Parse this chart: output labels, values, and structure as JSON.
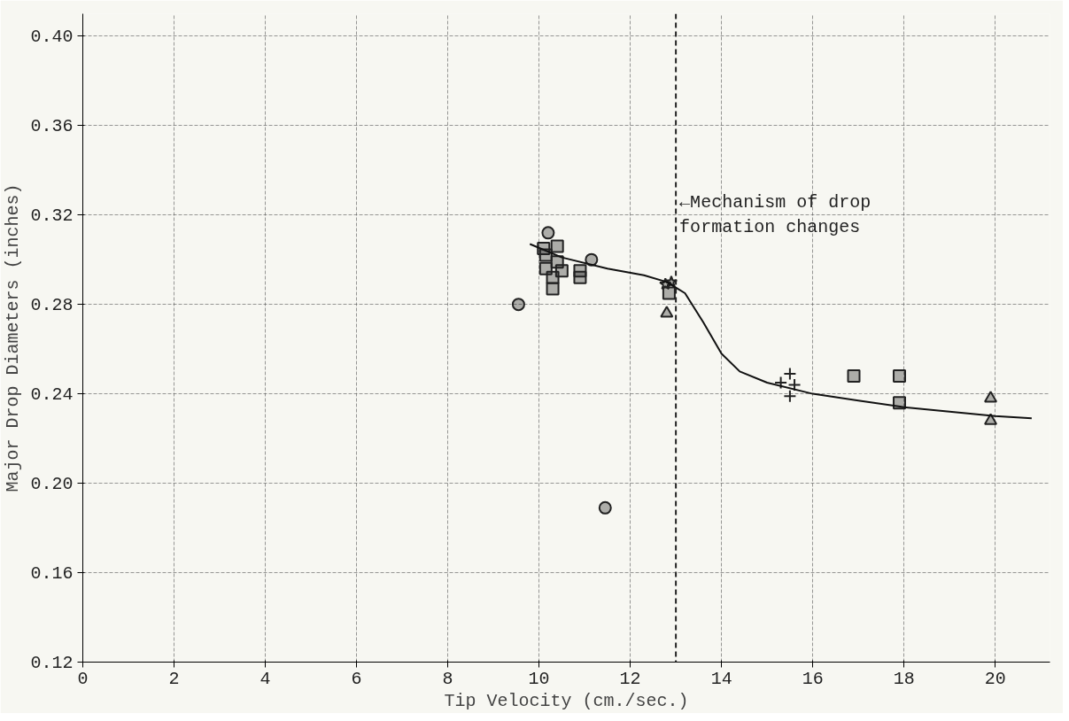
{
  "chart_data": {
    "type": "scatter",
    "xlabel": "Tip Velocity (cm./sec.)",
    "ylabel": "Major Drop Diameters (inches)",
    "xlim": [
      0,
      21.2
    ],
    "ylim": [
      0.12,
      0.41
    ],
    "xticks": [
      0,
      2,
      4,
      6,
      8,
      10,
      12,
      14,
      16,
      18,
      20
    ],
    "yticks": [
      0.12,
      0.16,
      {
        "value": 0.2,
        "label": "0.20"
      },
      0.24,
      0.28,
      0.32,
      0.36,
      {
        "value": 0.4,
        "label": "0.40"
      }
    ],
    "grid": true,
    "series": [
      {
        "color": "#222222",
        "marker": "circle",
        "x": [
          10.2,
          9.55,
          11.15
        ],
        "values": [
          0.312,
          0.28,
          0.3
        ]
      },
      {
        "color": "#222222",
        "marker": "square",
        "x": [
          10.1,
          10.4,
          10.15,
          10.4,
          10.15,
          10.5,
          10.3,
          10.3,
          10.9,
          10.9,
          12.85
        ],
        "values": [
          0.305,
          0.306,
          0.302,
          0.299,
          0.296,
          0.295,
          0.292,
          0.287,
          0.295,
          0.292,
          0.285
        ]
      },
      {
        "color": "#222222",
        "marker": "star",
        "x": [
          12.77,
          12.9
        ],
        "values": [
          0.289,
          0.29
        ]
      },
      {
        "color": "#222222",
        "marker": "triangle",
        "x": [
          12.8
        ],
        "values": [
          0.276
        ]
      },
      {
        "color": "#222222",
        "marker": "cross",
        "x": [
          15.5,
          15.3,
          15.6,
          15.5
        ],
        "values": [
          0.249,
          0.245,
          0.244,
          0.239
        ]
      },
      {
        "color": "#222222",
        "marker": "square",
        "x": [
          16.9,
          17.9,
          17.9
        ],
        "values": [
          0.248,
          0.248,
          0.236
        ]
      },
      {
        "color": "#222222",
        "marker": "triangle",
        "x": [
          19.9,
          19.9
        ],
        "values": [
          0.238,
          0.228
        ]
      },
      {
        "color": "#222222",
        "marker": "circle",
        "x": [
          11.45
        ],
        "values": [
          0.189
        ]
      },
      {
        "type": "line",
        "color": "#111111",
        "marker": "none",
        "x": [
          9.8,
          10.5,
          11.5,
          12.3,
          12.8,
          13.2,
          13.6,
          14.0,
          14.4,
          15.0,
          16.0,
          17.0,
          18.0,
          19.0,
          20.0,
          20.8
        ],
        "values": [
          0.307,
          0.301,
          0.296,
          0.293,
          0.29,
          0.285,
          0.272,
          0.258,
          0.25,
          0.245,
          0.24,
          0.237,
          0.234,
          0.232,
          0.23,
          0.229
        ]
      }
    ],
    "ref_lines": [
      {
        "axis": "x",
        "value": 13,
        "line_style": "dashed",
        "color": "#222222"
      }
    ],
    "annotations": [
      {
        "text": "←Mechanism of drop\n  formation changes",
        "x": 13,
        "y": 0.32
      }
    ]
  }
}
